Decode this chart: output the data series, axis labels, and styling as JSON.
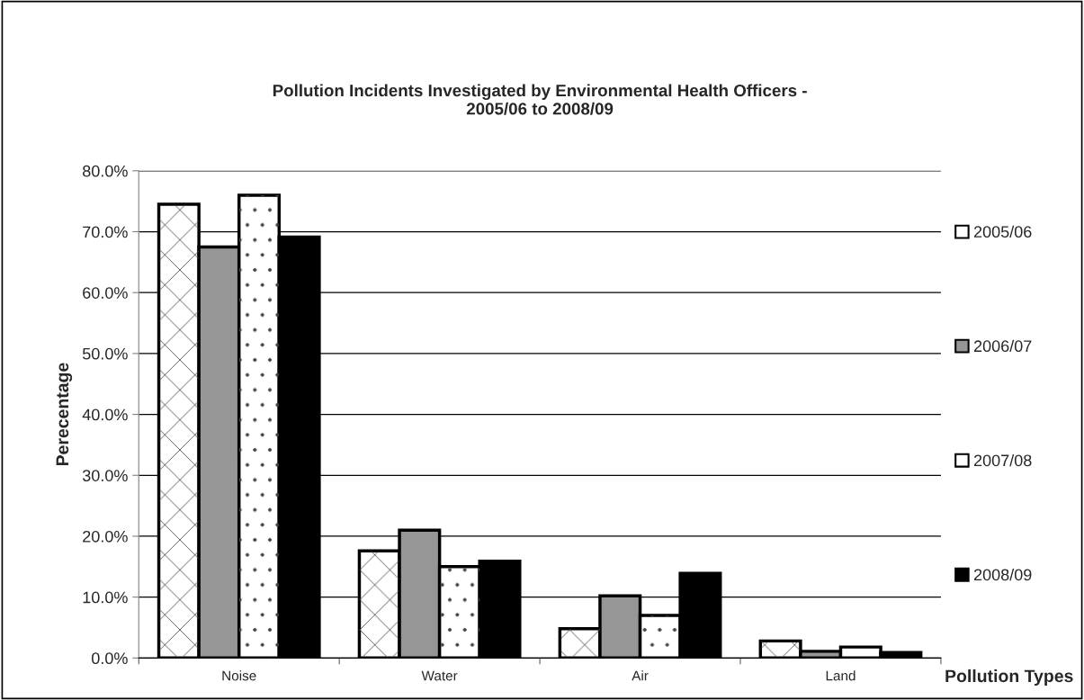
{
  "chart_data": {
    "type": "bar",
    "title": "Pollution Incidents Investigated by Environmental Health Officers -\n2005/06 to 2008/09",
    "xlabel": "Pollution Types",
    "ylabel": "Perecentage",
    "categories": [
      "Noise",
      "Water",
      "Air",
      "Land"
    ],
    "series": [
      {
        "name": "2005/06",
        "color": "#ffffff",
        "values": [
          74.5,
          17.6,
          4.8,
          2.8
        ]
      },
      {
        "name": "2006/07",
        "color": "#969696",
        "values": [
          67.5,
          21.0,
          10.2,
          1.1
        ]
      },
      {
        "name": "2007/08",
        "color": "#ffffff",
        "values": [
          76.0,
          15.0,
          7.0,
          1.8
        ]
      },
      {
        "name": "2008/09",
        "color": "#000000",
        "values": [
          69.1,
          15.9,
          13.9,
          0.9
        ]
      }
    ],
    "ylim": [
      0,
      80
    ],
    "yticks": [
      {
        "value": 0,
        "label": "0.0%"
      },
      {
        "value": 10,
        "label": "10.0%"
      },
      {
        "value": 20,
        "label": "20.0%"
      },
      {
        "value": 30,
        "label": "30.0%"
      },
      {
        "value": 40,
        "label": "40.0%"
      },
      {
        "value": 50,
        "label": "50.0%"
      },
      {
        "value": 60,
        "label": "60.0%"
      },
      {
        "value": 70,
        "label": "70.0%"
      },
      {
        "value": 80,
        "label": "80.0%"
      }
    ],
    "grid": "y",
    "legend": "right"
  }
}
